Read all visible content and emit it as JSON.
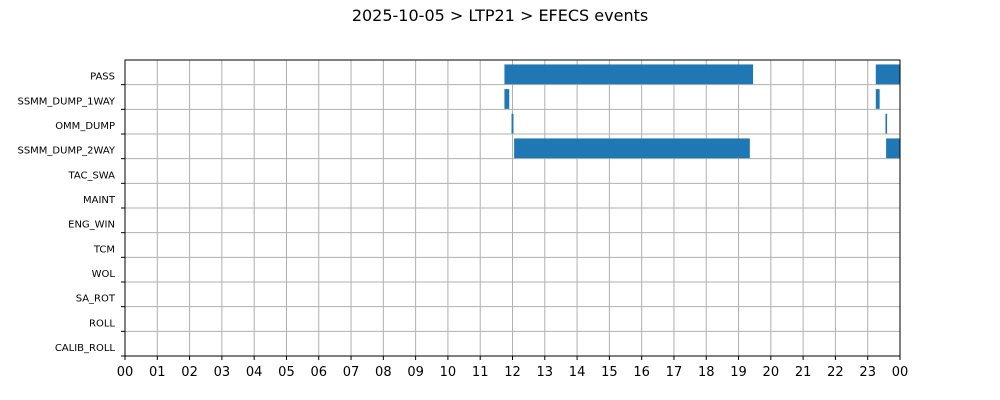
{
  "chart_data": {
    "type": "bar",
    "orientation": "horizontal",
    "title": "2025-10-05 > LTP21 > EFECS events",
    "xlabel": "",
    "ylabel": "",
    "xlim": [
      0,
      24
    ],
    "x_tick_labels": [
      "00",
      "01",
      "02",
      "03",
      "04",
      "05",
      "06",
      "07",
      "08",
      "09",
      "10",
      "11",
      "12",
      "13",
      "14",
      "15",
      "16",
      "17",
      "18",
      "19",
      "20",
      "21",
      "22",
      "23",
      "00"
    ],
    "categories": [
      "PASS",
      "SSMM_DUMP_1WAY",
      "OMM_DUMP",
      "SSMM_DUMP_2WAY",
      "TAC_SWA",
      "MAINT",
      "ENG_WIN",
      "TCM",
      "WOL",
      "SA_ROT",
      "ROLL",
      "CALIB_ROLL"
    ],
    "grid": true,
    "bar_color": "#1f77b4",
    "series": [
      {
        "category": "PASS",
        "intervals": [
          [
            11.75,
            19.45
          ],
          [
            23.25,
            24.0
          ]
        ]
      },
      {
        "category": "SSMM_DUMP_1WAY",
        "intervals": [
          [
            11.75,
            11.9
          ],
          [
            23.25,
            23.37
          ]
        ]
      },
      {
        "category": "OMM_DUMP",
        "intervals": [
          [
            11.97,
            12.03
          ],
          [
            23.55,
            23.6
          ]
        ]
      },
      {
        "category": "SSMM_DUMP_2WAY",
        "intervals": [
          [
            12.05,
            19.35
          ],
          [
            23.57,
            24.0
          ]
        ]
      },
      {
        "category": "TAC_SWA",
        "intervals": []
      },
      {
        "category": "MAINT",
        "intervals": []
      },
      {
        "category": "ENG_WIN",
        "intervals": []
      },
      {
        "category": "TCM",
        "intervals": []
      },
      {
        "category": "WOL",
        "intervals": []
      },
      {
        "category": "SA_ROT",
        "intervals": []
      },
      {
        "category": "ROLL",
        "intervals": []
      },
      {
        "category": "CALIB_ROLL",
        "intervals": []
      }
    ]
  }
}
